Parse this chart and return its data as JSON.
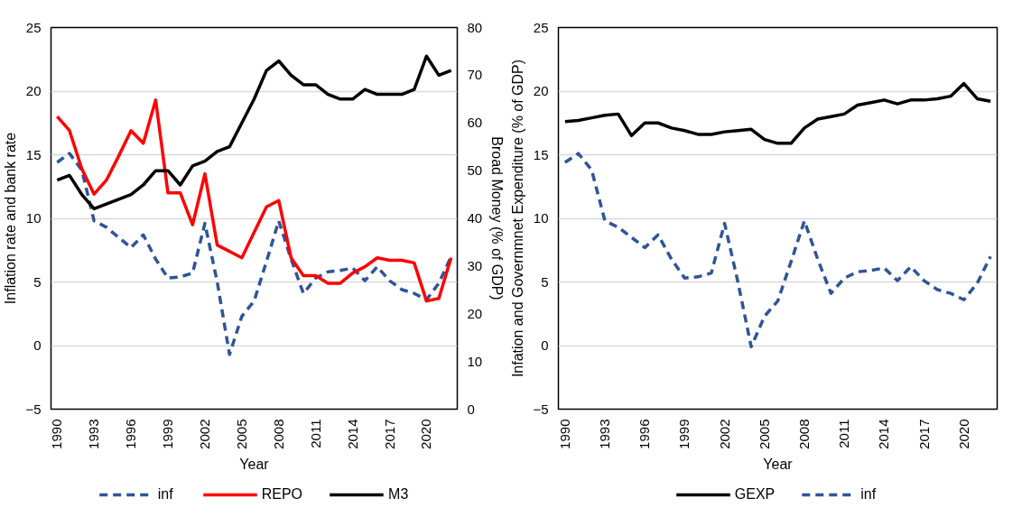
{
  "chart_data": [
    {
      "type": "line",
      "xlabel": "Year",
      "ylabel": "Inflation rate and bank rate",
      "y2label": "Broad Money (% of GDP)",
      "x": [
        1990,
        1991,
        1992,
        1993,
        1994,
        1995,
        1996,
        1997,
        1998,
        1999,
        2000,
        2001,
        2002,
        2003,
        2004,
        2005,
        2006,
        2007,
        2008,
        2009,
        2010,
        2011,
        2012,
        2013,
        2014,
        2015,
        2016,
        2017,
        2018,
        2019,
        2020,
        2021,
        2022
      ],
      "xlim": [
        1989.5,
        2022.5
      ],
      "xticks": [
        1990,
        1993,
        1996,
        1999,
        2002,
        2005,
        2008,
        2011,
        2014,
        2017,
        2020
      ],
      "ylim": [
        -5,
        25
      ],
      "yticks": [
        -5,
        0,
        5,
        10,
        15,
        20,
        25
      ],
      "y2lim": [
        0,
        80
      ],
      "y2ticks": [
        0,
        10,
        20,
        30,
        40,
        50,
        60,
        70,
        80
      ],
      "grid": "y",
      "legend": "bottom",
      "series": [
        {
          "name": "inf",
          "color": "#2f5597",
          "line_style": "dashed",
          "values": [
            14.4,
            15.1,
            13.8,
            9.8,
            9.3,
            8.5,
            7.7,
            8.7,
            6.8,
            5.3,
            5.4,
            5.7,
            9.6,
            5.0,
            -0.7,
            2.3,
            3.5,
            6.6,
            9.8,
            6.8,
            4.1,
            5.3,
            5.8,
            5.9,
            6.1,
            5.1,
            6.2,
            5.1,
            4.4,
            4.1,
            3.6,
            4.9,
            7.0
          ]
        },
        {
          "name": "REPO",
          "color": "#ff0000",
          "line_style": "solid",
          "values": [
            18.0,
            16.9,
            13.9,
            11.9,
            13.0,
            14.9,
            16.9,
            15.9,
            19.3,
            12.0,
            12.0,
            9.5,
            13.5,
            7.9,
            7.4,
            6.9,
            8.9,
            10.9,
            11.4,
            6.9,
            5.5,
            5.5,
            4.9,
            4.9,
            5.7,
            6.2,
            6.9,
            6.7,
            6.7,
            6.5,
            3.5,
            3.7,
            6.9
          ]
        },
        {
          "name": "M3",
          "color": "#000000",
          "line_style": "solid",
          "axis": "y2",
          "values": [
            48,
            49,
            45,
            42,
            43,
            44,
            45,
            47,
            50,
            50,
            47,
            51,
            52,
            54,
            55,
            60,
            65,
            71,
            73,
            70,
            68,
            68,
            66,
            65,
            65,
            67,
            66,
            66,
            66,
            67,
            74,
            70,
            71
          ]
        }
      ]
    },
    {
      "type": "line",
      "xlabel": "Year",
      "ylabel": "Infation and Governmnet Expenditure (% of GDP)",
      "x": [
        1990,
        1991,
        1992,
        1993,
        1994,
        1995,
        1996,
        1997,
        1998,
        1999,
        2000,
        2001,
        2002,
        2003,
        2004,
        2005,
        2006,
        2007,
        2008,
        2009,
        2010,
        2011,
        2012,
        2013,
        2014,
        2015,
        2016,
        2017,
        2018,
        2019,
        2020,
        2021,
        2022
      ],
      "xlim": [
        1989.5,
        2022.5
      ],
      "xticks": [
        1990,
        1993,
        1996,
        1999,
        2002,
        2005,
        2008,
        2011,
        2014,
        2017,
        2020
      ],
      "ylim": [
        -5,
        25
      ],
      "yticks": [
        -5,
        0,
        5,
        10,
        15,
        20,
        25
      ],
      "grid": "y",
      "legend": "bottom",
      "series": [
        {
          "name": "GEXP",
          "color": "#000000",
          "line_style": "solid",
          "values": [
            17.6,
            17.7,
            17.9,
            18.1,
            18.2,
            16.5,
            17.5,
            17.5,
            17.1,
            16.9,
            16.6,
            16.6,
            16.8,
            16.9,
            17.0,
            16.2,
            15.9,
            15.9,
            17.1,
            17.8,
            18.0,
            18.2,
            18.9,
            19.1,
            19.3,
            19.0,
            19.3,
            19.3,
            19.4,
            19.6,
            20.6,
            19.4,
            19.2
          ]
        },
        {
          "name": "inf",
          "color": "#2f5597",
          "line_style": "dashed",
          "values": [
            14.4,
            15.1,
            13.8,
            9.8,
            9.3,
            8.5,
            7.7,
            8.7,
            6.8,
            5.3,
            5.4,
            5.7,
            9.6,
            5.0,
            -0.1,
            2.3,
            3.5,
            6.6,
            9.8,
            6.8,
            4.1,
            5.3,
            5.8,
            5.9,
            6.1,
            5.1,
            6.2,
            5.1,
            4.4,
            4.1,
            3.6,
            4.9,
            7.0
          ]
        }
      ]
    }
  ]
}
